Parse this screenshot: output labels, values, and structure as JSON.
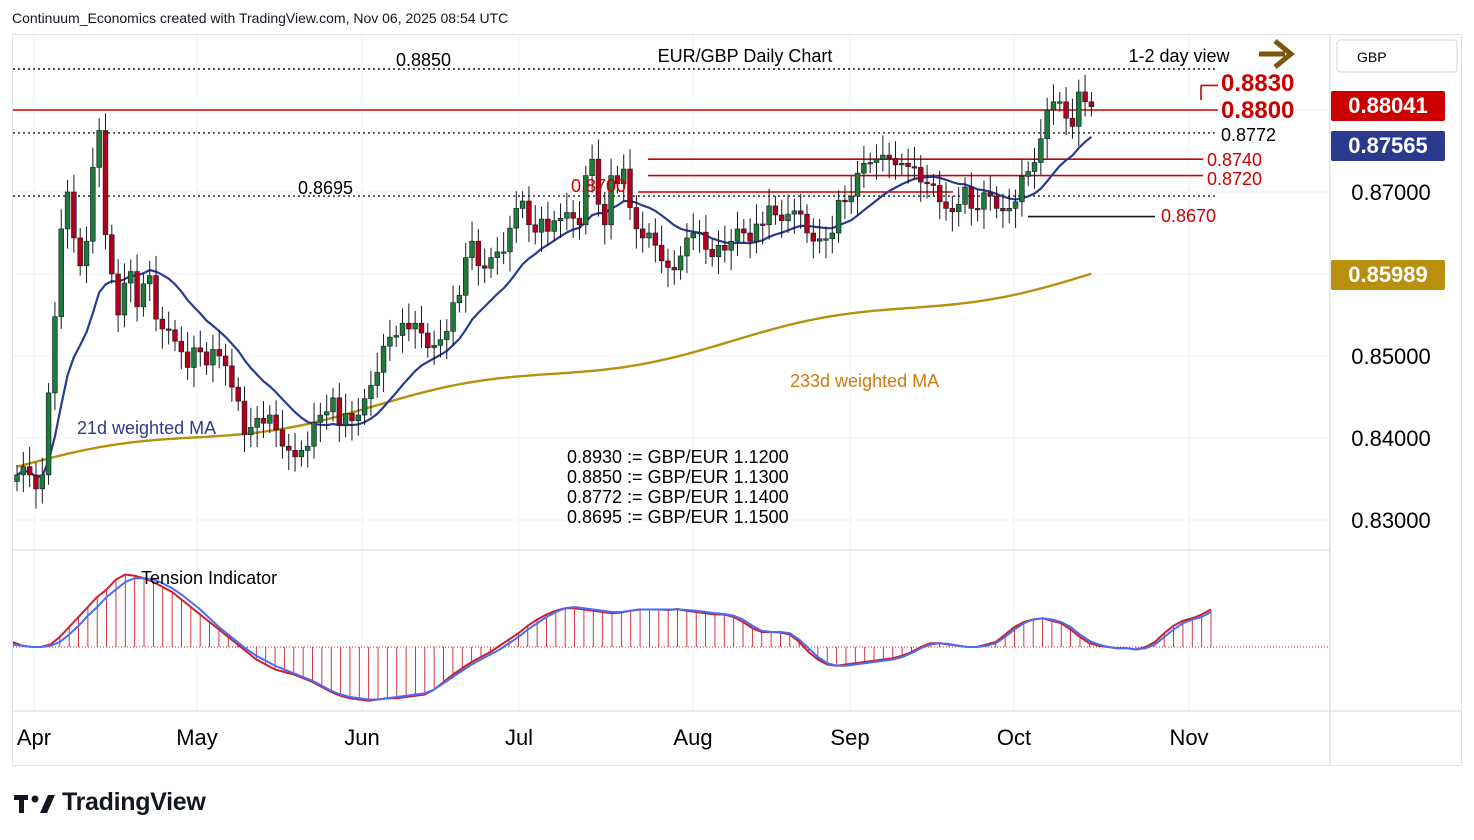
{
  "header": {
    "credit": "Continuum_Economics created with TradingView.com, Nov 06, 2025 08:54 UTC"
  },
  "branding": {
    "name": "TradingView",
    "logo_icon": "tradingview-logo-icon"
  },
  "colors": {
    "bull": "#1e7b3a",
    "bear": "#b2001c",
    "resistance": "#cc0000",
    "ma21": "#2a3b8f",
    "ma233": "#b8900d",
    "tension_fill": "#cc1f2d",
    "tension_signal": "#4a6cf7",
    "arrow": "#7a5a0a",
    "text": "#131722"
  },
  "chart_data": [
    {
      "type": "candlestick",
      "title": "EUR/GBP Daily Chart",
      "subtitle": "1-2 day view",
      "currency": "GBP",
      "direction_arrow": "right",
      "x_tick_labels": [
        "Apr",
        "May",
        "Jun",
        "Jul",
        "Aug",
        "Sep",
        "Oct",
        "Nov"
      ],
      "x_tick_dates": [
        "2025-04-01",
        "2025-05-01",
        "2025-06-02",
        "2025-07-01",
        "2025-08-01",
        "2025-09-01",
        "2025-10-01",
        "2025-11-03"
      ],
      "y_tick_labels": [
        "0.87000",
        "0.85000",
        "0.84000",
        "0.83000"
      ],
      "ylim": [
        0.826,
        0.892
      ],
      "grid": true,
      "candles_close": [
        0.8355,
        0.8365,
        0.8355,
        0.8338,
        0.8355,
        0.8455,
        0.8548,
        0.8655,
        0.87,
        0.8644,
        0.861,
        0.864,
        0.873,
        0.8775,
        0.8648,
        0.86,
        0.855,
        0.8589,
        0.8603,
        0.856,
        0.8588,
        0.8598,
        0.8545,
        0.8533,
        0.8532,
        0.8518,
        0.8505,
        0.8486,
        0.851,
        0.8505,
        0.8489,
        0.8508,
        0.85,
        0.8488,
        0.8462,
        0.8445,
        0.8404,
        0.8413,
        0.8424,
        0.8418,
        0.8428,
        0.841,
        0.839,
        0.8385,
        0.8377,
        0.8385,
        0.839,
        0.8419,
        0.8428,
        0.8432,
        0.8449,
        0.8416,
        0.843,
        0.8421,
        0.8428,
        0.8448,
        0.8464,
        0.848,
        0.8512,
        0.8523,
        0.8525,
        0.854,
        0.8533,
        0.854,
        0.8528,
        0.851,
        0.8513,
        0.852,
        0.853,
        0.8565,
        0.8574,
        0.862,
        0.864,
        0.861,
        0.8607,
        0.862,
        0.8627,
        0.8627,
        0.8656,
        0.868,
        0.8689,
        0.866,
        0.8651,
        0.8667,
        0.8652,
        0.8665,
        0.8668,
        0.8675,
        0.8668,
        0.866,
        0.872,
        0.874,
        0.8685,
        0.866,
        0.872,
        0.871,
        0.8728,
        0.8681,
        0.8655,
        0.8644,
        0.865,
        0.8635,
        0.8616,
        0.8608,
        0.8605,
        0.8622,
        0.8644,
        0.865,
        0.8651,
        0.863,
        0.8621,
        0.8635,
        0.8629,
        0.864,
        0.8655,
        0.865,
        0.864,
        0.8661,
        0.866,
        0.8683,
        0.8672,
        0.8665,
        0.8673,
        0.8677,
        0.8673,
        0.865,
        0.864,
        0.8643,
        0.8643,
        0.865,
        0.869,
        0.8688,
        0.8695,
        0.8723,
        0.8735,
        0.8736,
        0.874,
        0.8745,
        0.8741,
        0.8733,
        0.8735,
        0.8731,
        0.873,
        0.8712,
        0.871,
        0.8708,
        0.8688,
        0.868,
        0.8676,
        0.8685,
        0.8706,
        0.868,
        0.8679,
        0.8699,
        0.8695,
        0.868,
        0.8677,
        0.868,
        0.8688,
        0.8719,
        0.8725,
        0.8736,
        0.8765,
        0.88,
        0.881,
        0.881,
        0.879,
        0.878,
        0.8822,
        0.881,
        0.8804
      ],
      "annotations": [
        "0.8850",
        "0.8830",
        "0.8800",
        "0.8772",
        "0.8740",
        "0.8720",
        "0.8700",
        "0.8695",
        "0.8670"
      ],
      "moving_averages": [
        {
          "name": "21d weighted MA",
          "last_value": "0.87565",
          "color": "#2a3b8f"
        },
        {
          "name": "233d weighted MA",
          "last_value": "0.85989",
          "color": "#b8900d"
        }
      ],
      "last_price": "0.88041",
      "conversions": [
        "0.8930 := GBP/EUR 1.1200",
        "0.8850 := GBP/EUR 1.1300",
        "0.8772 := GBP/EUR 1.1400",
        "0.8695 := GBP/EUR 1.1500"
      ]
    },
    {
      "type": "line",
      "title": "Tension Indicator",
      "series": [
        {
          "name": "Tension Indicator",
          "color": "#cc1f2d",
          "values": [
            0.2,
            0.05,
            0.0,
            0.0,
            0.1,
            0.4,
            0.8,
            1.2,
            1.6,
            2.0,
            2.3,
            2.7,
            2.9,
            2.85,
            2.75,
            2.6,
            2.4,
            2.2,
            1.9,
            1.6,
            1.3,
            1.0,
            0.7,
            0.4,
            0.1,
            -0.2,
            -0.5,
            -0.7,
            -0.9,
            -1.0,
            -1.1,
            -1.25,
            -1.4,
            -1.6,
            -1.8,
            -1.95,
            -2.05,
            -2.1,
            -2.15,
            -2.1,
            -2.05,
            -2.05,
            -2.0,
            -1.95,
            -1.9,
            -1.7,
            -1.4,
            -1.1,
            -0.85,
            -0.6,
            -0.4,
            -0.2,
            0.05,
            0.3,
            0.55,
            0.85,
            1.1,
            1.3,
            1.45,
            1.55,
            1.55,
            1.5,
            1.45,
            1.4,
            1.35,
            1.38,
            1.45,
            1.5,
            1.5,
            1.5,
            1.48,
            1.52,
            1.45,
            1.4,
            1.35,
            1.3,
            1.3,
            1.2,
            1.0,
            0.75,
            0.6,
            0.6,
            0.58,
            0.5,
            0.2,
            -0.2,
            -0.5,
            -0.7,
            -0.75,
            -0.7,
            -0.65,
            -0.6,
            -0.55,
            -0.5,
            -0.45,
            -0.35,
            -0.2,
            0.0,
            0.15,
            0.15,
            0.1,
            0.05,
            0.0,
            0.0,
            0.1,
            0.2,
            0.5,
            0.8,
            1.0,
            1.1,
            1.15,
            1.05,
            0.95,
            0.7,
            0.4,
            0.15,
            0.05,
            0.0,
            -0.05,
            -0.05,
            -0.1,
            0.0,
            0.2,
            0.55,
            0.85,
            1.05,
            1.15,
            1.3,
            1.5
          ]
        },
        {
          "name": "signal",
          "color": "#4a6cf7",
          "values": [
            0.1,
            0.05,
            0.0,
            0.0,
            0.05,
            0.2,
            0.5,
            0.85,
            1.25,
            1.6,
            2.0,
            2.3,
            2.6,
            2.75,
            2.75,
            2.7,
            2.55,
            2.35,
            2.1,
            1.8,
            1.5,
            1.15,
            0.8,
            0.5,
            0.2,
            -0.1,
            -0.35,
            -0.55,
            -0.75,
            -0.9,
            -1.05,
            -1.2,
            -1.35,
            -1.55,
            -1.75,
            -1.9,
            -2.0,
            -2.05,
            -2.1,
            -2.1,
            -2.05,
            -2.0,
            -1.95,
            -1.9,
            -1.85,
            -1.7,
            -1.45,
            -1.2,
            -0.95,
            -0.7,
            -0.5,
            -0.3,
            -0.1,
            0.15,
            0.4,
            0.7,
            0.95,
            1.2,
            1.4,
            1.55,
            1.6,
            1.55,
            1.5,
            1.45,
            1.4,
            1.4,
            1.45,
            1.5,
            1.5,
            1.5,
            1.5,
            1.5,
            1.48,
            1.45,
            1.4,
            1.35,
            1.32,
            1.25,
            1.1,
            0.85,
            0.65,
            0.6,
            0.6,
            0.55,
            0.3,
            -0.05,
            -0.4,
            -0.65,
            -0.75,
            -0.75,
            -0.7,
            -0.65,
            -0.6,
            -0.55,
            -0.5,
            -0.4,
            -0.25,
            -0.05,
            0.1,
            0.15,
            0.12,
            0.05,
            0.0,
            0.0,
            0.05,
            0.15,
            0.4,
            0.7,
            0.95,
            1.1,
            1.15,
            1.1,
            1.0,
            0.8,
            0.5,
            0.25,
            0.1,
            0.0,
            -0.05,
            -0.05,
            -0.1,
            -0.05,
            0.1,
            0.4,
            0.7,
            0.95,
            1.1,
            1.2,
            1.4
          ]
        }
      ]
    }
  ]
}
